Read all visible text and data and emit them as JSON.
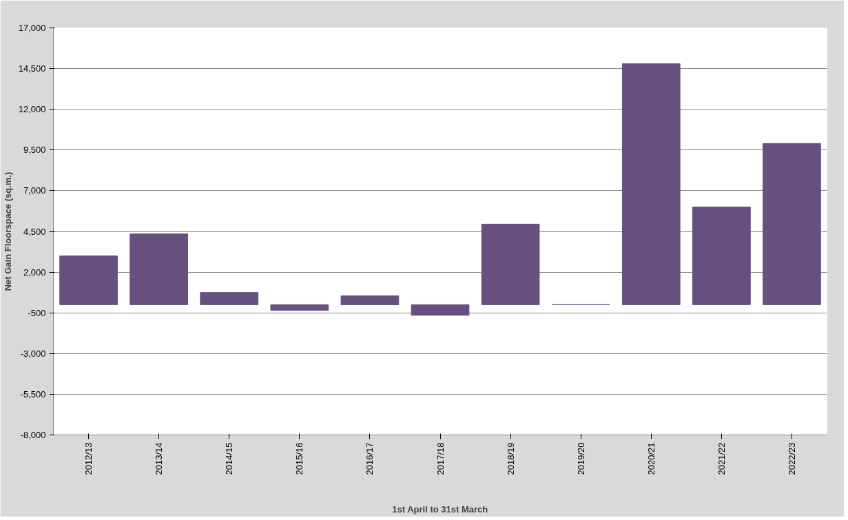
{
  "chart_data": {
    "type": "bar",
    "xlabel": "1st April to 31st March",
    "ylabel": "Net Gain Floorspace (sq.m.)",
    "categories": [
      "2012/13",
      "2013/14",
      "2014/15",
      "2015/16",
      "2016/17",
      "2017/18",
      "2018/19",
      "2019/20",
      "2020/21",
      "2021/22",
      "2022/23"
    ],
    "values": [
      3000,
      4350,
      750,
      -350,
      550,
      -650,
      4950,
      0,
      14800,
      6000,
      9900
    ],
    "color": "#67507f",
    "ylim": [
      -8000,
      17000
    ],
    "yticks": [
      {
        "value": -8000,
        "label": "-8,000"
      },
      {
        "value": -5500,
        "label": "-5,500"
      },
      {
        "value": -3000,
        "label": "-3,000"
      },
      {
        "value": -500,
        "label": "-500"
      },
      {
        "value": 2000,
        "label": "2,000"
      },
      {
        "value": 4500,
        "label": "4,500"
      },
      {
        "value": 7000,
        "label": "7,000"
      },
      {
        "value": 9500,
        "label": "9,500"
      },
      {
        "value": 12000,
        "label": "12,000"
      },
      {
        "value": 14500,
        "label": "14,500"
      },
      {
        "value": 17000,
        "label": "17,000"
      }
    ],
    "grid": "y"
  }
}
